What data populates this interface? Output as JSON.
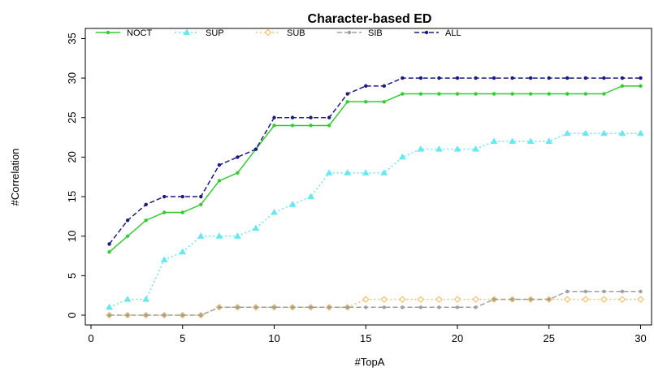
{
  "chart_data": {
    "type": "line",
    "title": "Character-based ED",
    "xlabel": "#TopA",
    "ylabel": "#Correlation",
    "xlim": [
      0,
      30
    ],
    "ylim": [
      0,
      35
    ],
    "xticks": [
      0,
      5,
      10,
      15,
      20,
      25,
      30
    ],
    "yticks": [
      0,
      5,
      10,
      15,
      20,
      25,
      30,
      35
    ],
    "grid": false,
    "legend_position": "top",
    "x": [
      1,
      2,
      3,
      4,
      5,
      6,
      7,
      8,
      9,
      10,
      11,
      12,
      13,
      14,
      15,
      16,
      17,
      18,
      19,
      20,
      21,
      22,
      23,
      24,
      25,
      26,
      27,
      28,
      29,
      30
    ],
    "series": [
      {
        "name": "NOCT",
        "color": "#33cc33",
        "marker": "dot",
        "line": "solid",
        "values": [
          8,
          10,
          12,
          13,
          13,
          14,
          17,
          18,
          21,
          24,
          24,
          24,
          24,
          27,
          27,
          27,
          28,
          28,
          28,
          28,
          28,
          28,
          28,
          28,
          28,
          28,
          28,
          28,
          29,
          29
        ]
      },
      {
        "name": "SUP",
        "color": "#66e8f0",
        "marker": "triangle",
        "line": "dotted",
        "values": [
          1,
          2,
          2,
          7,
          8,
          10,
          10,
          10,
          11,
          13,
          14,
          15,
          18,
          18,
          18,
          18,
          20,
          21,
          21,
          21,
          21,
          22,
          22,
          22,
          22,
          23,
          23,
          23,
          23,
          23
        ]
      },
      {
        "name": "SUB",
        "color": "#f5c26b",
        "marker": "diamond",
        "line": "dotted",
        "values": [
          0,
          0,
          0,
          0,
          0,
          0,
          1,
          1,
          1,
          1,
          1,
          1,
          1,
          1,
          2,
          2,
          2,
          2,
          2,
          2,
          2,
          2,
          2,
          2,
          2,
          2,
          2,
          2,
          2,
          2
        ]
      },
      {
        "name": "SIB",
        "color": "#a0a0a0",
        "marker": "dot",
        "line": "dashed",
        "values": [
          0,
          0,
          0,
          0,
          0,
          0,
          1,
          1,
          1,
          1,
          1,
          1,
          1,
          1,
          1,
          1,
          1,
          1,
          1,
          1,
          1,
          2,
          2,
          2,
          2,
          3,
          3,
          3,
          3,
          3
        ]
      },
      {
        "name": "ALL",
        "color": "#1a1a80",
        "marker": "dot",
        "line": "dashed",
        "values": [
          9,
          12,
          14,
          15,
          15,
          15,
          19,
          20,
          21,
          25,
          25,
          25,
          25,
          28,
          29,
          29,
          30,
          30,
          30,
          30,
          30,
          30,
          30,
          30,
          30,
          30,
          30,
          30,
          30,
          30
        ]
      }
    ]
  }
}
